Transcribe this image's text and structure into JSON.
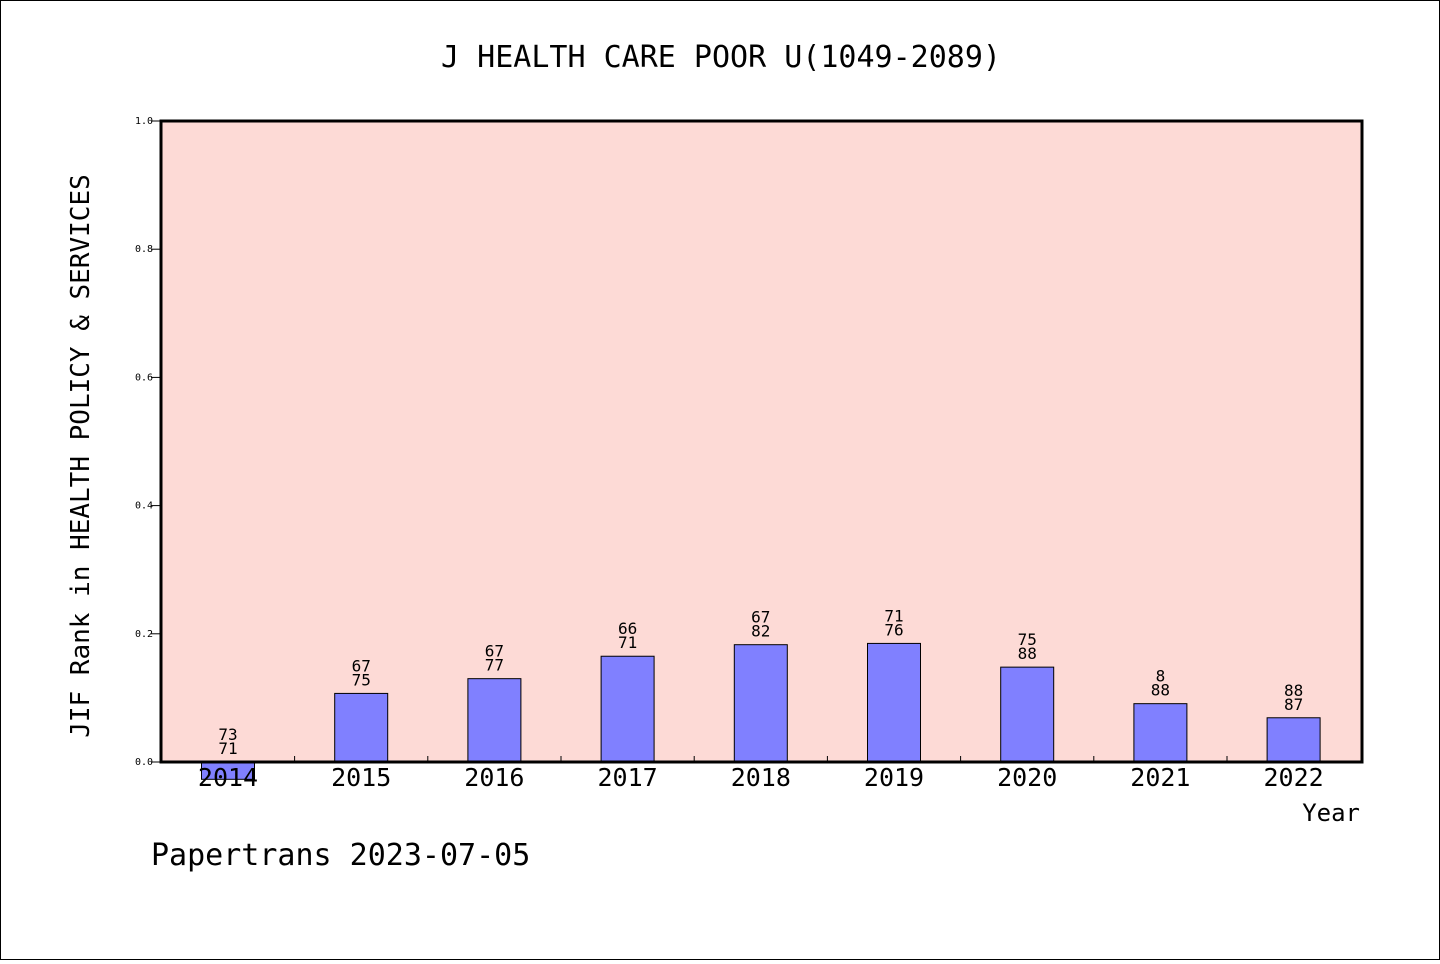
{
  "chart_data": {
    "type": "bar",
    "title": "J HEALTH CARE POOR U(1049-2089)",
    "xlabel": "Year",
    "ylabel": "JIF Rank in HEALTH POLICY & SERVICES",
    "categories": [
      "2014",
      "2015",
      "2016",
      "2017",
      "2018",
      "2019",
      "2020",
      "2021",
      "2022"
    ],
    "values": [
      -0.027,
      0.107,
      0.13,
      0.165,
      0.183,
      0.185,
      0.148,
      0.091,
      0.069
    ],
    "labels_top": [
      "73",
      "67",
      "67",
      "66",
      "67",
      "71",
      "75",
      "8",
      "88"
    ],
    "labels_bottom": [
      "71",
      "75",
      "77",
      "71",
      "82",
      "76",
      "88",
      "88",
      "87"
    ],
    "ylim": [
      0.0,
      1.0
    ],
    "yticks": [
      "0.0",
      "0.2",
      "0.4",
      "0.6",
      "0.8",
      "1.0"
    ],
    "grid": false,
    "colors": {
      "plot_background": "#fddad6",
      "bar_fill": "#8080ff",
      "bar_edge": "#000000"
    }
  },
  "footer": "Papertrans 2023-07-05"
}
